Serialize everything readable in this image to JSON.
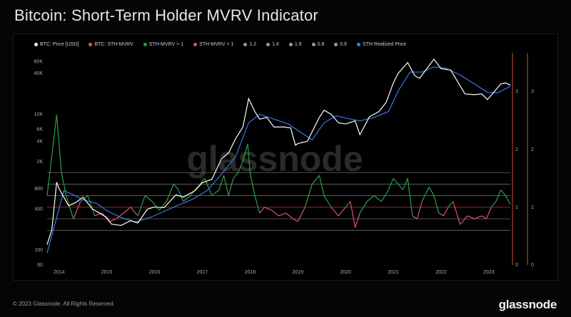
{
  "title": "Bitcoin: Short-Term Holder MVRV Indicator",
  "footer": "© 2023 Glassnode. All Rights Reserved.",
  "brand": "glassnode",
  "watermark": "glassnode",
  "legend": [
    {
      "label": "BTC: Price [USD]",
      "color": "#ffffff"
    },
    {
      "label": "BTC: STH-MVRV",
      "color": "#e8632b"
    },
    {
      "label": "STH-MVRV > 1",
      "color": "#2ea043"
    },
    {
      "label": "STH-MVRV < 1",
      "color": "#e0507a"
    },
    {
      "label": "1.2",
      "color": "#9a9a9a"
    },
    {
      "label": "1.4",
      "color": "#9a9a9a"
    },
    {
      "label": "1.6",
      "color": "#9a9a9a"
    },
    {
      "label": "0.8",
      "color": "#9a9a9a"
    },
    {
      "label": "0.6",
      "color": "#9a9a9a"
    },
    {
      "label": "STH Realized Price",
      "color": "#3b82f6"
    }
  ],
  "chart_data": {
    "type": "line",
    "title": "Bitcoin: Short-Term Holder MVRV Indicator",
    "x_ticks": [
      "2014",
      "2015",
      "2016",
      "2017",
      "2018",
      "2019",
      "2020",
      "2021",
      "2022",
      "2023"
    ],
    "x_range": [
      2013.75,
      2023.45
    ],
    "y_left": {
      "scale": "log",
      "ticks": [
        "60",
        "100",
        "400",
        "800",
        "2K",
        "4K",
        "6K",
        "10K",
        "40K",
        "60K"
      ],
      "tick_values": [
        60,
        100,
        400,
        800,
        2000,
        4000,
        6000,
        10000,
        40000,
        60000
      ],
      "range": [
        60,
        70000
      ]
    },
    "y_right_inner": {
      "ticks": [
        "0",
        "1",
        "2",
        "3"
      ],
      "range": [
        0,
        3.6
      ]
    },
    "y_right_outer": {
      "ticks": [
        "0",
        "1",
        "2",
        "3"
      ],
      "range": [
        0,
        3.6
      ]
    },
    "thresholds": [
      1.6,
      1.4,
      1.2,
      1.0,
      0.8,
      0.6
    ],
    "series": [
      {
        "name": "BTC: Price [USD]",
        "color": "#ffffff",
        "x": [
          2013.75,
          2013.85,
          2013.95,
          2014.0,
          2014.1,
          2014.2,
          2014.35,
          2014.5,
          2014.7,
          2014.85,
          2015.0,
          2015.1,
          2015.3,
          2015.5,
          2015.65,
          2015.85,
          2016.0,
          2016.2,
          2016.45,
          2016.6,
          2016.85,
          2017.0,
          2017.2,
          2017.4,
          2017.55,
          2017.7,
          2017.85,
          2017.97,
          2018.1,
          2018.2,
          2018.35,
          2018.5,
          2018.7,
          2018.85,
          2018.95,
          2019.0,
          2019.2,
          2019.45,
          2019.55,
          2019.7,
          2019.85,
          2020.0,
          2020.2,
          2020.3,
          2020.5,
          2020.7,
          2020.85,
          2021.0,
          2021.1,
          2021.3,
          2021.45,
          2021.55,
          2021.7,
          2021.85,
          2022.0,
          2022.2,
          2022.35,
          2022.5,
          2022.7,
          2022.85,
          2022.97,
          2023.1,
          2023.25,
          2023.35,
          2023.45
        ],
        "y": [
          120,
          200,
          1000,
          800,
          600,
          450,
          500,
          600,
          400,
          350,
          300,
          240,
          230,
          270,
          250,
          400,
          430,
          420,
          650,
          600,
          750,
          980,
          1100,
          2200,
          2700,
          4400,
          6500,
          17000,
          11000,
          8500,
          9000,
          6500,
          6500,
          6300,
          3500,
          3700,
          4000,
          9000,
          11500,
          10000,
          7500,
          7200,
          8000,
          5000,
          9200,
          11000,
          15000,
          29000,
          40000,
          58000,
          37000,
          34000,
          47000,
          65000,
          47000,
          45000,
          30000,
          20000,
          19500,
          20000,
          16500,
          21000,
          28000,
          29000,
          27000
        ]
      },
      {
        "name": "STH Realized Price",
        "color": "#3b82f6",
        "x": [
          2013.75,
          2013.95,
          2014.1,
          2014.3,
          2014.5,
          2014.8,
          2015.0,
          2015.3,
          2015.6,
          2015.9,
          2016.2,
          2016.5,
          2016.8,
          2017.1,
          2017.4,
          2017.7,
          2017.97,
          2018.2,
          2018.5,
          2018.8,
          2019.0,
          2019.3,
          2019.55,
          2019.8,
          2020.0,
          2020.3,
          2020.6,
          2020.9,
          2021.1,
          2021.35,
          2021.6,
          2021.85,
          2022.1,
          2022.4,
          2022.7,
          2022.97,
          2023.2,
          2023.45
        ],
        "y": [
          90,
          300,
          750,
          650,
          550,
          480,
          380,
          300,
          260,
          300,
          370,
          460,
          560,
          750,
          1300,
          2400,
          7500,
          10000,
          8500,
          7200,
          5800,
          4200,
          7500,
          9500,
          8800,
          8000,
          9000,
          11000,
          22000,
          42000,
          42000,
          50000,
          48000,
          38000,
          28000,
          21000,
          21000,
          26000
        ]
      },
      {
        "name": "BTC: STH-MVRV",
        "color": "#e8632b",
        "x": [
          2013.75,
          2013.85,
          2013.95,
          2014.05,
          2014.15,
          2014.3,
          2014.45,
          2014.6,
          2014.75,
          2014.9,
          2015.05,
          2015.2,
          2015.35,
          2015.5,
          2015.65,
          2015.8,
          2015.95,
          2016.1,
          2016.25,
          2016.4,
          2016.5,
          2016.6,
          2016.75,
          2016.9,
          2017.05,
          2017.2,
          2017.35,
          2017.45,
          2017.55,
          2017.65,
          2017.75,
          2017.85,
          2017.95,
          2018.0,
          2018.1,
          2018.2,
          2018.3,
          2018.45,
          2018.6,
          2018.75,
          2018.9,
          2019.0,
          2019.15,
          2019.3,
          2019.45,
          2019.55,
          2019.7,
          2019.85,
          2020.0,
          2020.1,
          2020.2,
          2020.3,
          2020.45,
          2020.6,
          2020.75,
          2020.9,
          2021.0,
          2021.1,
          2021.2,
          2021.3,
          2021.4,
          2021.5,
          2021.6,
          2021.75,
          2021.85,
          2021.95,
          2022.05,
          2022.15,
          2022.25,
          2022.4,
          2022.55,
          2022.7,
          2022.85,
          2022.95,
          2023.05,
          2023.15,
          2023.25,
          2023.35,
          2023.45
        ],
        "y": [
          1.2,
          1.9,
          2.6,
          1.6,
          1.2,
          0.8,
          1.1,
          1.2,
          0.85,
          0.9,
          0.75,
          0.8,
          0.9,
          1.0,
          0.85,
          1.2,
          1.1,
          0.95,
          1.1,
          1.4,
          1.3,
          1.1,
          1.2,
          1.35,
          1.5,
          1.2,
          1.3,
          1.55,
          1.2,
          1.5,
          1.6,
          1.8,
          2.1,
          1.6,
          1.2,
          0.9,
          1.0,
          0.95,
          0.85,
          0.9,
          0.8,
          0.75,
          1.0,
          1.4,
          1.55,
          1.2,
          1.0,
          0.85,
          1.0,
          1.1,
          0.65,
          0.9,
          1.1,
          1.2,
          1.1,
          1.3,
          1.5,
          1.4,
          1.3,
          1.5,
          0.85,
          0.8,
          1.1,
          1.35,
          1.2,
          0.9,
          0.85,
          1.0,
          1.1,
          0.7,
          0.85,
          0.8,
          0.85,
          0.8,
          1.0,
          1.1,
          1.3,
          1.2,
          1.05
        ]
      }
    ]
  }
}
